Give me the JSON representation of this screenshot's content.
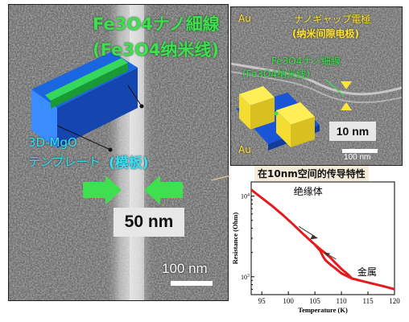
{
  "panel_a": {
    "title_line1": "Fe3O4ナノ細線",
    "title_line2": "(Fe3O4纳米线)",
    "template_label_line1": "3D-MgO",
    "template_label_line2": "テンプレート",
    "template_label_cn": "(模板)",
    "width_label": "50 nm",
    "scale_bar": "100 nm"
  },
  "panel_b": {
    "au_top": "Au",
    "electrode_label": "ナノギャップ電極",
    "electrode_label_cn": "(纳米间隙电极)",
    "wire_label": "Fe3O4ナノ細線",
    "wire_label_cn": "(Fe3O4纳米线)",
    "au_bottom": "Au",
    "gap_label": "10 nm",
    "scale_bar": "100 nm"
  },
  "chart_title": "在10nm空间的传导特性",
  "chart_data": {
    "type": "line",
    "xlabel": "Temperature (K)",
    "ylabel": "Resistance (Ohm)",
    "xlim": [
      93,
      120
    ],
    "x_ticks": [
      95,
      100,
      105,
      110,
      115,
      120
    ],
    "y_scale": "log",
    "ylim": [
      600,
      15000
    ],
    "y_tick_labels": [
      "10^4",
      "10^3"
    ],
    "annotations": [
      "绝缘体",
      "金属"
    ],
    "series": [
      {
        "x": [
          93,
          95,
          97,
          99,
          101,
          103,
          105,
          106,
          106.5,
          107,
          108,
          109,
          110,
          112,
          115,
          118,
          120
        ],
        "y": [
          12000,
          9500,
          7500,
          5800,
          4400,
          3300,
          2500,
          2100,
          1800,
          1600,
          1400,
          1250,
          1100,
          950,
          850,
          760,
          700
        ]
      },
      {
        "x": [
          105,
          106,
          107,
          108,
          109,
          110,
          111,
          112
        ],
        "y": [
          2500,
          2200,
          1950,
          1700,
          1450,
          1250,
          1100,
          950
        ]
      }
    ],
    "color": "#e41a1c"
  }
}
